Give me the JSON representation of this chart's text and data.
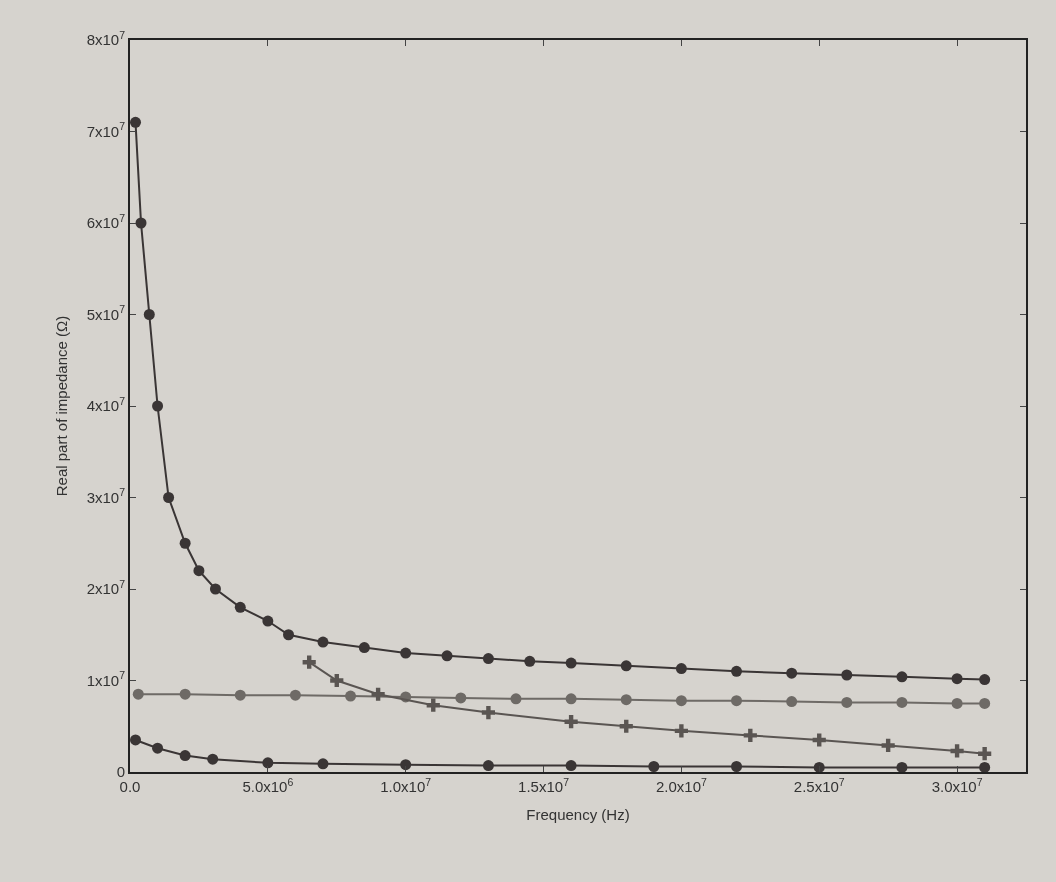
{
  "chart_data": {
    "type": "line",
    "xlabel": "Frequency (Hz)",
    "ylabel": "Real part of impedance (Ω)",
    "xlim": [
      0,
      32500000
    ],
    "ylim": [
      0,
      80000000
    ],
    "xticks": [
      {
        "value": 0,
        "label": "0.0"
      },
      {
        "value": 5000000,
        "label": "5.0x10$^{6}$"
      },
      {
        "value": 10000000,
        "label": "1.0x10$^{7}$"
      },
      {
        "value": 15000000,
        "label": "1.5x10$^{7}$"
      },
      {
        "value": 20000000,
        "label": "2.0x10$^{7}$"
      },
      {
        "value": 25000000,
        "label": "2.5x10$^{7}$"
      },
      {
        "value": 30000000,
        "label": "3.0x10$^{7}$"
      }
    ],
    "yticks": [
      0,
      {
        "value": 10000000,
        "label": "1x10$^{7}$"
      },
      {
        "value": 20000000,
        "label": "2x10$^{7}$"
      },
      {
        "value": 30000000,
        "label": "3x10$^{7}$"
      },
      {
        "value": 40000000,
        "label": "4x10$^{7}$"
      },
      {
        "value": 50000000,
        "label": "5x10$^{7}$"
      },
      {
        "value": 60000000,
        "label": "6x10$^{7}$"
      },
      {
        "value": 70000000,
        "label": "7x10$^{7}$"
      },
      {
        "value": 80000000,
        "label": "8x10$^{7}$"
      }
    ],
    "grid": false,
    "line_style": "solid",
    "series": [
      {
        "color": "#3a3535",
        "marker": "circle",
        "x": [
          200000,
          400000,
          700000,
          1000000,
          1400000,
          2000000,
          2500000,
          3100000,
          4000000,
          5000000,
          5750000,
          7000000,
          8500000,
          10000000,
          11500000,
          13000000,
          14500000,
          16000000,
          18000000,
          20000000,
          22000000,
          24000000,
          26000000,
          28000000,
          30000000,
          31000000
        ],
        "values": [
          71000000,
          60000000,
          50000000,
          40000000,
          30000000,
          25000000,
          22000000,
          20000000,
          18000000,
          16500000,
          15000000,
          14200000,
          13600000,
          13000000,
          12700000,
          12400000,
          12100000,
          11900000,
          11600000,
          11300000,
          11000000,
          10800000,
          10600000,
          10400000,
          10200000,
          10100000
        ]
      },
      {
        "color": "#6e6a66",
        "marker": "circle",
        "x": [
          300000,
          2000000,
          4000000,
          6000000,
          8000000,
          10000000,
          12000000,
          14000000,
          16000000,
          18000000,
          20000000,
          22000000,
          24000000,
          26000000,
          28000000,
          30000000,
          31000000
        ],
        "values": [
          8500000,
          8500000,
          8400000,
          8400000,
          8300000,
          8200000,
          8100000,
          8000000,
          8000000,
          7900000,
          7800000,
          7800000,
          7700000,
          7600000,
          7600000,
          7500000,
          7500000
        ]
      },
      {
        "color": "#5a5552",
        "marker": "cross",
        "x": [
          6500000,
          7500000,
          9000000,
          11000000,
          13000000,
          16000000,
          18000000,
          20000000,
          22500000,
          25000000,
          27500000,
          30000000,
          31000000
        ],
        "values": [
          12000000,
          10000000,
          8500000,
          7300000,
          6500000,
          5500000,
          5000000,
          4500000,
          4000000,
          3500000,
          2900000,
          2300000,
          2000000
        ]
      },
      {
        "color": "#3a3535",
        "marker": "circle",
        "x": [
          200000,
          1000000,
          2000000,
          3000000,
          5000000,
          7000000,
          10000000,
          13000000,
          16000000,
          19000000,
          22000000,
          25000000,
          28000000,
          31000000
        ],
        "values": [
          3500000,
          2600000,
          1800000,
          1400000,
          1000000,
          900000,
          800000,
          700000,
          700000,
          600000,
          600000,
          500000,
          500000,
          500000
        ]
      }
    ]
  }
}
